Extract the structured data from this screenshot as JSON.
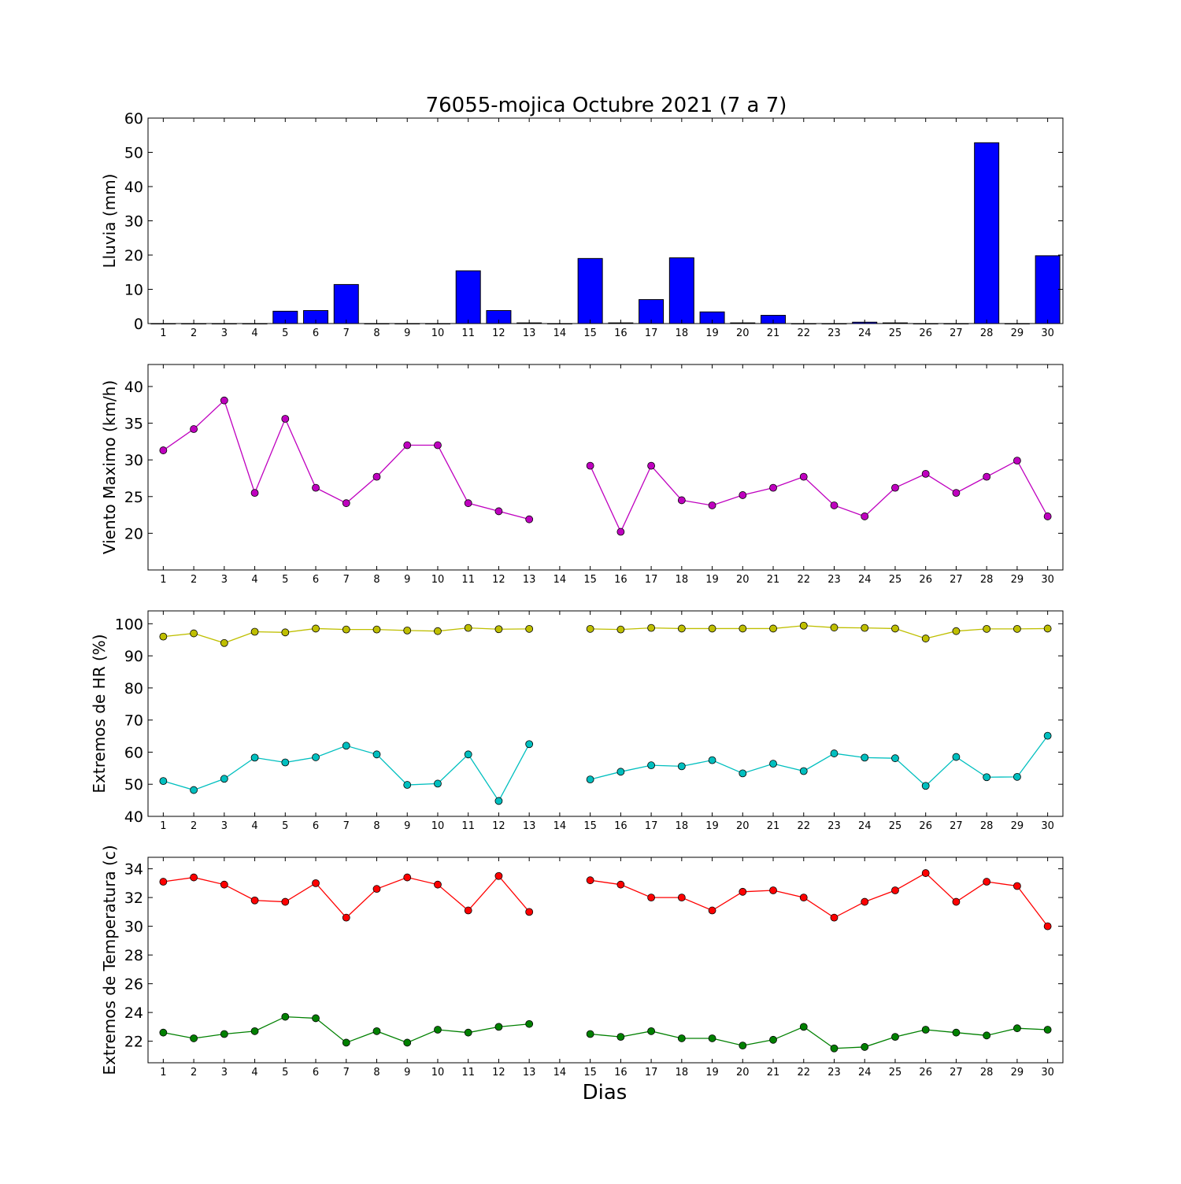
{
  "chart_data": {
    "title": "76055-mojica Octubre 2021  (7 a 7)",
    "xlabel": "Dias",
    "categories": [
      "1",
      "2",
      "3",
      "4",
      "5",
      "6",
      "7",
      "8",
      "9",
      "10",
      "11",
      "12",
      "13",
      "14",
      "15",
      "16",
      "17",
      "18",
      "19",
      "20",
      "21",
      "22",
      "23",
      "24",
      "25",
      "26",
      "27",
      "28",
      "29",
      "30"
    ],
    "panels": [
      {
        "type": "bar",
        "ylabel": "Lluvia (mm)",
        "ylim": [
          0,
          60
        ],
        "yticks": [
          0,
          10,
          20,
          30,
          40,
          50,
          60
        ],
        "series": [
          {
            "color": "#0000ff",
            "values": [
              0,
              0,
              0,
              0,
              3.6,
              3.8,
              11.4,
              0,
              0,
              0,
              15.4,
              3.8,
              0.2,
              0,
              19.0,
              0.2,
              7.0,
              19.2,
              3.4,
              0.2,
              2.4,
              0,
              0,
              0.4,
              0.2,
              0,
              0,
              52.8,
              0,
              19.8
            ]
          }
        ]
      },
      {
        "type": "line",
        "ylabel": "Viento Maximo (km/h)",
        "ylim": [
          15,
          43
        ],
        "yticks": [
          20,
          25,
          30,
          35,
          40
        ],
        "series": [
          {
            "color": "#bf00bf",
            "values": [
              31.3,
              34.2,
              38.1,
              25.5,
              35.6,
              26.2,
              24.1,
              27.7,
              32.0,
              32.0,
              24.1,
              23.0,
              21.9,
              null,
              29.2,
              20.2,
              29.2,
              24.5,
              23.8,
              25.2,
              26.2,
              27.7,
              23.8,
              22.3,
              26.2,
              28.1,
              25.5,
              27.7,
              29.9,
              22.3
            ]
          }
        ]
      },
      {
        "type": "line",
        "ylabel": "Extremos de HR (%)",
        "ylim": [
          40,
          104
        ],
        "yticks": [
          40,
          50,
          60,
          70,
          80,
          90,
          100
        ],
        "series": [
          {
            "color": "#bfbf00",
            "values": [
              96.0,
              97.0,
              94.0,
              97.5,
              97.3,
              98.5,
              98.2,
              98.2,
              97.9,
              97.7,
              98.7,
              98.3,
              98.4,
              null,
              98.4,
              98.2,
              98.7,
              98.5,
              98.5,
              98.5,
              98.5,
              99.4,
              98.8,
              98.7,
              98.5,
              95.4,
              97.7,
              98.4,
              98.4,
              98.5
            ]
          },
          {
            "color": "#00bfbf",
            "values": [
              51.0,
              48.2,
              51.7,
              58.3,
              56.8,
              58.4,
              62.0,
              59.3,
              49.8,
              50.2,
              59.3,
              44.8,
              62.5,
              null,
              51.5,
              53.9,
              55.9,
              55.6,
              57.5,
              53.4,
              56.4,
              54.1,
              59.6,
              58.3,
              58.1,
              49.5,
              58.5,
              52.2,
              52.3,
              65.1
            ]
          }
        ]
      },
      {
        "type": "line",
        "ylabel": "Extremos de Temperatura (c)",
        "ylim": [
          20.5,
          34.8
        ],
        "yticks": [
          22,
          24,
          26,
          28,
          30,
          32,
          34
        ],
        "series": [
          {
            "color": "#ff0000",
            "values": [
              33.1,
              33.4,
              32.9,
              31.8,
              31.7,
              33.0,
              30.6,
              32.6,
              33.4,
              32.9,
              31.1,
              33.5,
              31.0,
              null,
              33.2,
              32.9,
              32.0,
              32.0,
              31.1,
              32.4,
              32.5,
              32.0,
              30.6,
              31.7,
              32.5,
              33.7,
              31.7,
              33.1,
              32.8,
              30.0
            ]
          },
          {
            "color": "#008000",
            "values": [
              22.6,
              22.2,
              22.5,
              22.7,
              23.7,
              23.6,
              21.9,
              22.7,
              21.9,
              22.8,
              22.6,
              23.0,
              23.2,
              null,
              22.5,
              22.3,
              22.7,
              22.2,
              22.2,
              21.7,
              22.1,
              23.0,
              21.5,
              21.6,
              22.3,
              22.8,
              22.6,
              22.4,
              22.9,
              22.8
            ]
          }
        ]
      }
    ]
  }
}
